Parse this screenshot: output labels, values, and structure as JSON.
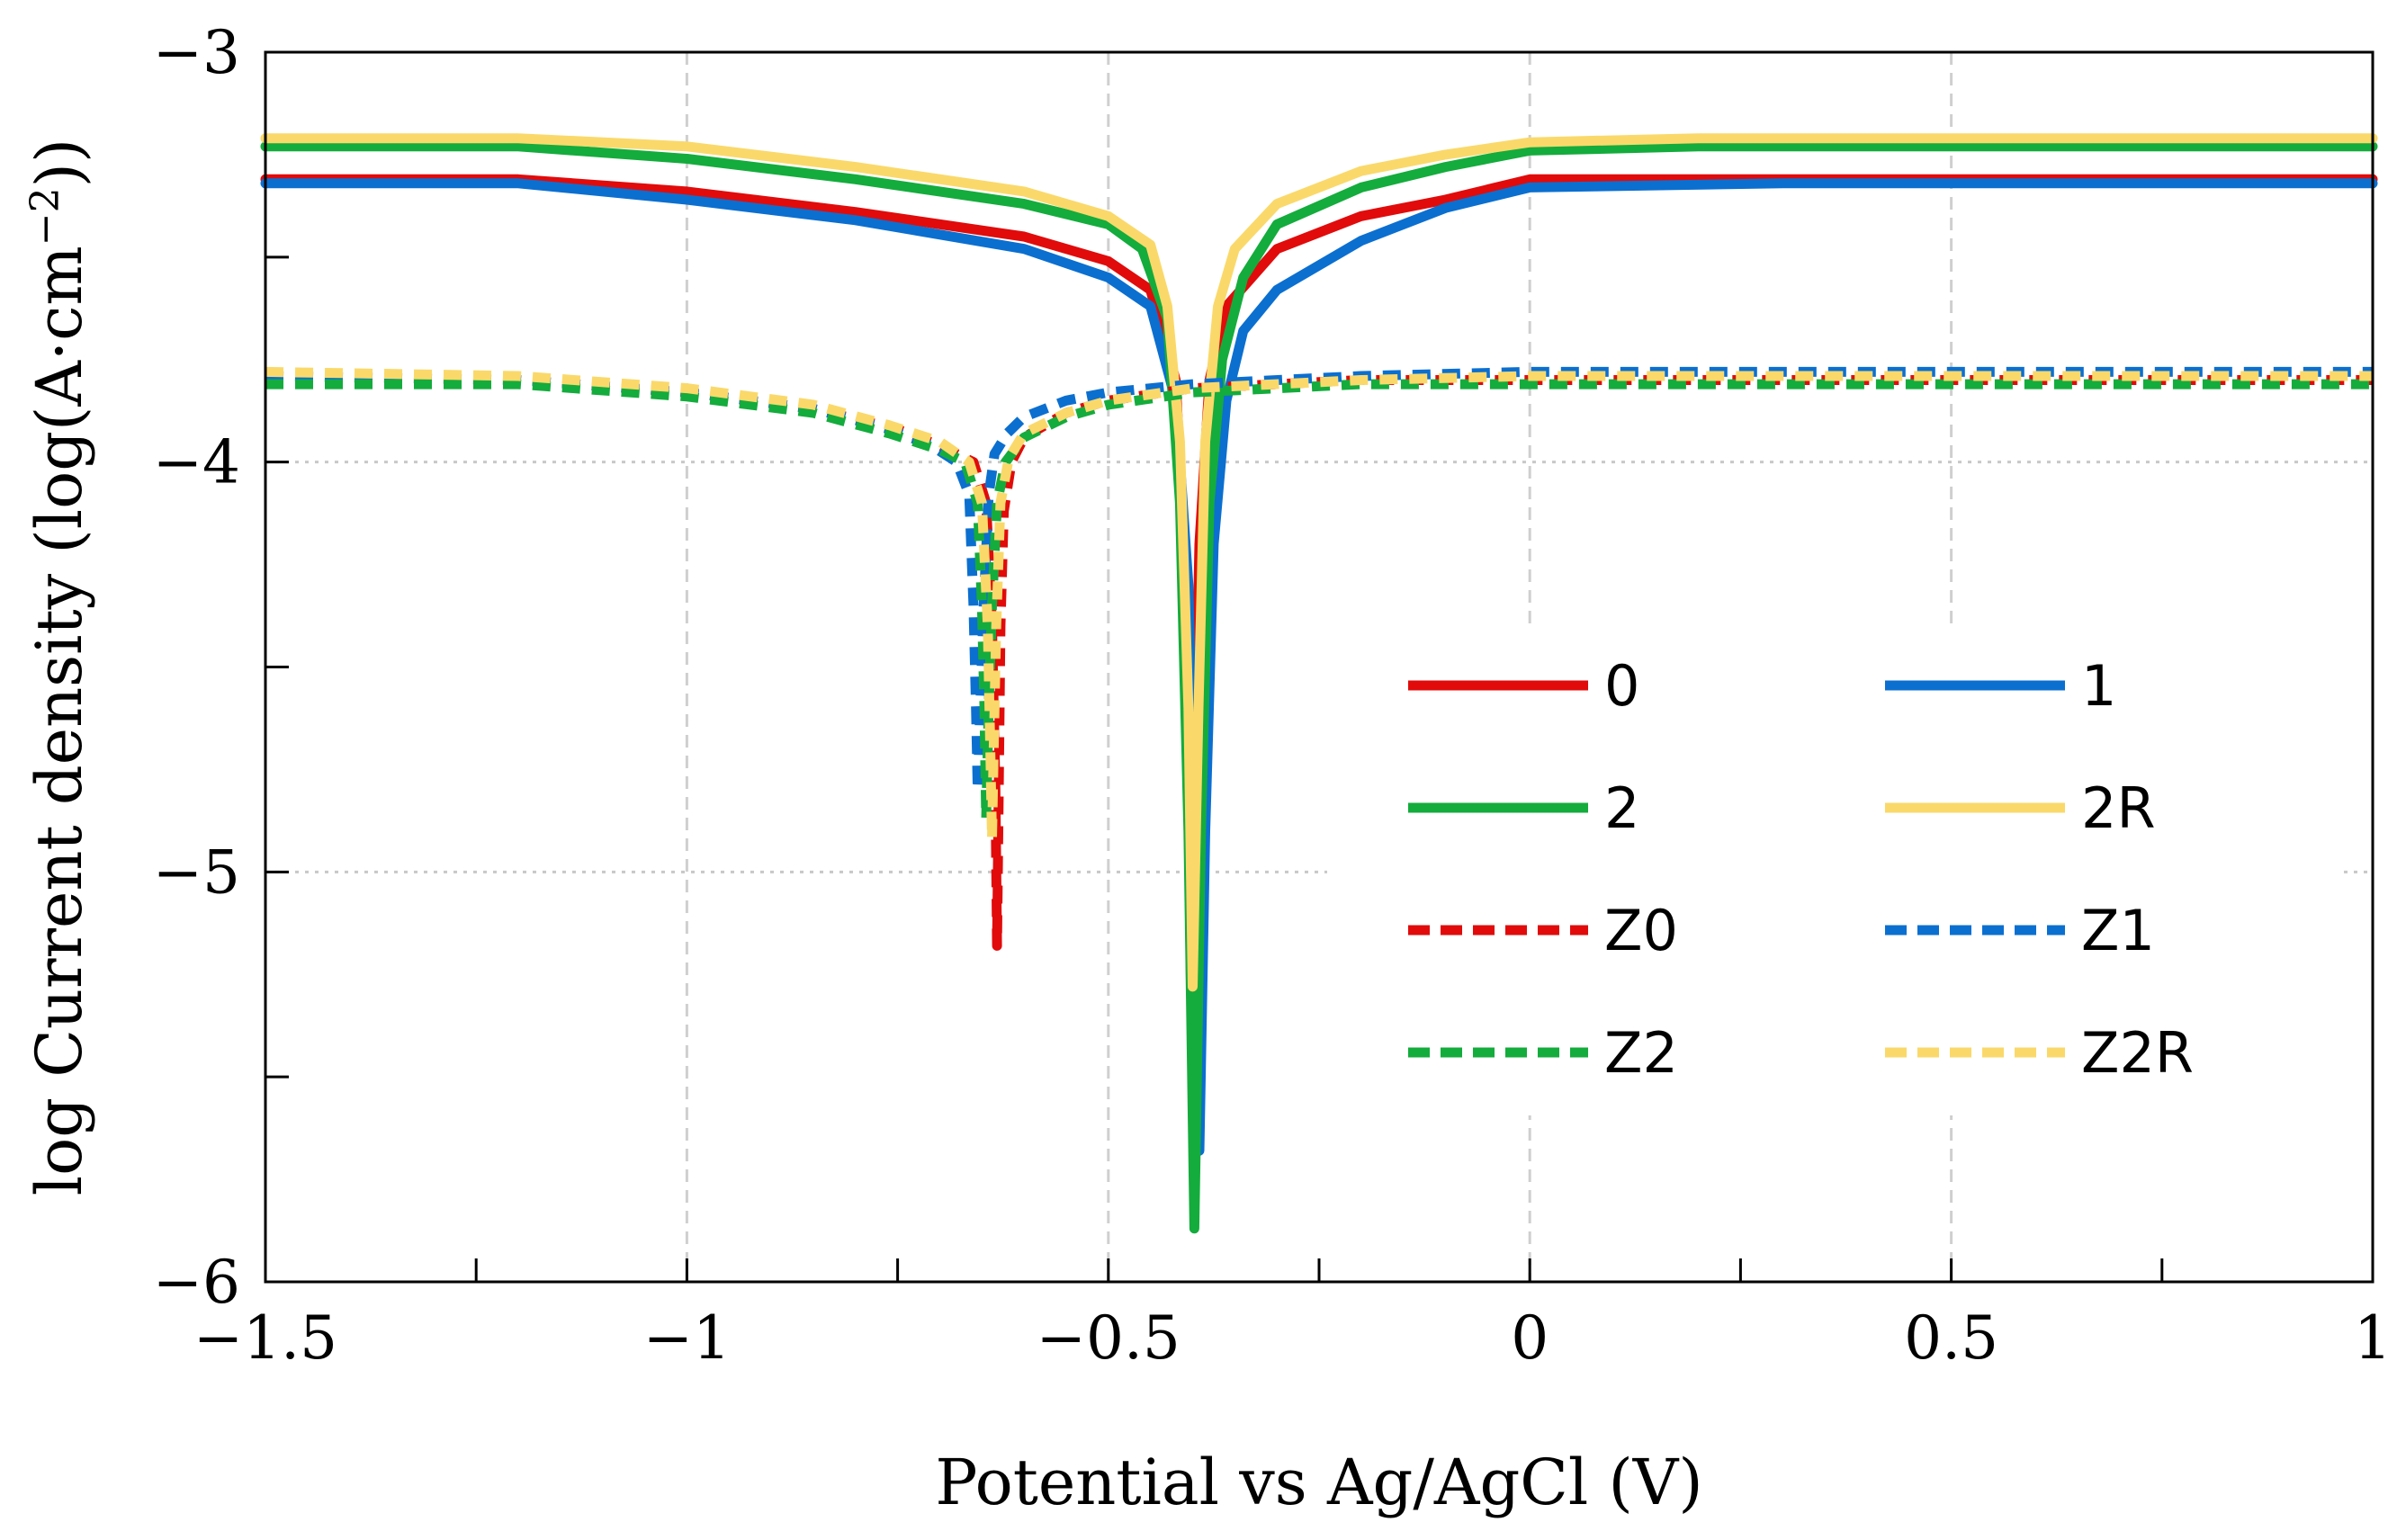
{
  "chart_data": {
    "type": "line",
    "title": "",
    "xlabel": "Potential vs Ag/AgCl (V)",
    "ylabel_pre": "log Current density (log(A·cm",
    "ylabel_sup": "−2",
    "ylabel_post": "))",
    "xlim": [
      -1.5,
      1
    ],
    "ylim": [
      -6,
      -3
    ],
    "x_ticks": [
      {
        "value": -1.5,
        "label": "−1.5"
      },
      {
        "value": -1,
        "label": "−1"
      },
      {
        "value": -0.5,
        "label": "−0.5"
      },
      {
        "value": 0,
        "label": "0"
      },
      {
        "value": 0.5,
        "label": "0.5"
      },
      {
        "value": 1,
        "label": "1"
      }
    ],
    "y_ticks": [
      {
        "value": -3,
        "label": "−3"
      },
      {
        "value": -4,
        "label": "−4"
      },
      {
        "value": -5,
        "label": "−5"
      },
      {
        "value": -6,
        "label": "−6"
      }
    ],
    "x_grid": [
      -1,
      -0.5,
      0,
      0.5
    ],
    "y_grid": [
      -4,
      -5
    ],
    "grid": true,
    "legend_position": "lower-right",
    "series": [
      {
        "name": "0",
        "color": "#e10b0b",
        "dash": "solid",
        "points": [
          [
            -1.5,
            -3.31
          ],
          [
            -1.2,
            -3.31
          ],
          [
            -1.0,
            -3.34
          ],
          [
            -0.8,
            -3.39
          ],
          [
            -0.6,
            -3.45
          ],
          [
            -0.5,
            -3.51
          ],
          [
            -0.45,
            -3.58
          ],
          [
            -0.42,
            -3.8
          ],
          [
            -0.41,
            -4.2
          ],
          [
            -0.405,
            -4.8
          ],
          [
            -0.402,
            -5.28
          ],
          [
            -0.398,
            -4.8
          ],
          [
            -0.392,
            -4.2
          ],
          [
            -0.38,
            -3.8
          ],
          [
            -0.36,
            -3.62
          ],
          [
            -0.3,
            -3.48
          ],
          [
            -0.2,
            -3.4
          ],
          [
            -0.1,
            -3.36
          ],
          [
            0.0,
            -3.31
          ],
          [
            0.3,
            -3.31
          ],
          [
            1.0,
            -3.31
          ]
        ]
      },
      {
        "name": "1",
        "color": "#0b6fd0",
        "dash": "solid",
        "points": [
          [
            -1.5,
            -3.32
          ],
          [
            -1.2,
            -3.32
          ],
          [
            -1.0,
            -3.36
          ],
          [
            -0.8,
            -3.41
          ],
          [
            -0.6,
            -3.48
          ],
          [
            -0.5,
            -3.55
          ],
          [
            -0.45,
            -3.62
          ],
          [
            -0.42,
            -3.85
          ],
          [
            -0.405,
            -4.3
          ],
          [
            -0.398,
            -4.9
          ],
          [
            -0.392,
            -5.68
          ],
          [
            -0.385,
            -4.9
          ],
          [
            -0.375,
            -4.2
          ],
          [
            -0.36,
            -3.85
          ],
          [
            -0.34,
            -3.68
          ],
          [
            -0.3,
            -3.58
          ],
          [
            -0.2,
            -3.46
          ],
          [
            -0.1,
            -3.38
          ],
          [
            0.0,
            -3.33
          ],
          [
            0.3,
            -3.32
          ],
          [
            1.0,
            -3.32
          ]
        ]
      },
      {
        "name": "2",
        "color": "#14ac3c",
        "dash": "solid",
        "points": [
          [
            -1.5,
            -3.23
          ],
          [
            -1.2,
            -3.23
          ],
          [
            -1.0,
            -3.26
          ],
          [
            -0.8,
            -3.31
          ],
          [
            -0.6,
            -3.37
          ],
          [
            -0.5,
            -3.42
          ],
          [
            -0.46,
            -3.48
          ],
          [
            -0.43,
            -3.65
          ],
          [
            -0.415,
            -4.1
          ],
          [
            -0.405,
            -4.9
          ],
          [
            -0.398,
            -5.87
          ],
          [
            -0.39,
            -4.9
          ],
          [
            -0.38,
            -4.1
          ],
          [
            -0.365,
            -3.75
          ],
          [
            -0.34,
            -3.55
          ],
          [
            -0.3,
            -3.42
          ],
          [
            -0.2,
            -3.33
          ],
          [
            -0.1,
            -3.28
          ],
          [
            0.0,
            -3.24
          ],
          [
            0.2,
            -3.23
          ],
          [
            1.0,
            -3.23
          ]
        ]
      },
      {
        "name": "2R",
        "color": "#fad96a",
        "dash": "solid",
        "points": [
          [
            -1.5,
            -3.21
          ],
          [
            -1.2,
            -3.21
          ],
          [
            -1.0,
            -3.23
          ],
          [
            -0.8,
            -3.28
          ],
          [
            -0.6,
            -3.34
          ],
          [
            -0.5,
            -3.4
          ],
          [
            -0.45,
            -3.47
          ],
          [
            -0.43,
            -3.62
          ],
          [
            -0.415,
            -3.95
          ],
          [
            -0.405,
            -4.6
          ],
          [
            -0.4,
            -5.28
          ],
          [
            -0.393,
            -4.6
          ],
          [
            -0.385,
            -3.95
          ],
          [
            -0.37,
            -3.62
          ],
          [
            -0.35,
            -3.48
          ],
          [
            -0.3,
            -3.37
          ],
          [
            -0.2,
            -3.29
          ],
          [
            -0.1,
            -3.25
          ],
          [
            0.0,
            -3.22
          ],
          [
            0.2,
            -3.21
          ],
          [
            1.0,
            -3.21
          ]
        ]
      },
      {
        "name": "Z0",
        "color": "#e10b0b",
        "dash": "dashed",
        "points": [
          [
            -1.5,
            -3.79
          ],
          [
            -1.2,
            -3.8
          ],
          [
            -1.0,
            -3.83
          ],
          [
            -0.85,
            -3.87
          ],
          [
            -0.75,
            -3.92
          ],
          [
            -0.7,
            -3.96
          ],
          [
            -0.66,
            -4.0
          ],
          [
            -0.645,
            -4.1
          ],
          [
            -0.638,
            -4.4
          ],
          [
            -0.634,
            -4.8
          ],
          [
            -0.632,
            -5.18
          ],
          [
            -0.63,
            -4.8
          ],
          [
            -0.628,
            -4.4
          ],
          [
            -0.624,
            -4.12
          ],
          [
            -0.615,
            -4.0
          ],
          [
            -0.6,
            -3.94
          ],
          [
            -0.55,
            -3.88
          ],
          [
            -0.5,
            -3.85
          ],
          [
            -0.4,
            -3.82
          ],
          [
            -0.2,
            -3.8
          ],
          [
            0.0,
            -3.8
          ],
          [
            1.0,
            -3.8
          ]
        ]
      },
      {
        "name": "Z1",
        "color": "#0b6fd0",
        "dash": "dashed",
        "points": [
          [
            -1.5,
            -3.79
          ],
          [
            -1.2,
            -3.8
          ],
          [
            -1.0,
            -3.83
          ],
          [
            -0.85,
            -3.87
          ],
          [
            -0.76,
            -3.92
          ],
          [
            -0.71,
            -3.96
          ],
          [
            -0.68,
            -4.0
          ],
          [
            -0.665,
            -4.08
          ],
          [
            -0.66,
            -4.35
          ],
          [
            -0.657,
            -4.6
          ],
          [
            -0.655,
            -4.8
          ],
          [
            -0.652,
            -4.6
          ],
          [
            -0.648,
            -4.35
          ],
          [
            -0.642,
            -4.08
          ],
          [
            -0.635,
            -3.98
          ],
          [
            -0.62,
            -3.93
          ],
          [
            -0.6,
            -3.89
          ],
          [
            -0.55,
            -3.85
          ],
          [
            -0.5,
            -3.83
          ],
          [
            -0.4,
            -3.81
          ],
          [
            -0.2,
            -3.79
          ],
          [
            0.0,
            -3.78
          ],
          [
            1.0,
            -3.78
          ]
        ]
      },
      {
        "name": "Z2",
        "color": "#14ac3c",
        "dash": "dashed",
        "points": [
          [
            -1.5,
            -3.81
          ],
          [
            -1.2,
            -3.81
          ],
          [
            -1.0,
            -3.84
          ],
          [
            -0.85,
            -3.88
          ],
          [
            -0.76,
            -3.93
          ],
          [
            -0.7,
            -3.97
          ],
          [
            -0.67,
            -4.0
          ],
          [
            -0.655,
            -4.1
          ],
          [
            -0.65,
            -4.35
          ],
          [
            -0.647,
            -4.6
          ],
          [
            -0.645,
            -4.87
          ],
          [
            -0.642,
            -4.6
          ],
          [
            -0.638,
            -4.35
          ],
          [
            -0.632,
            -4.1
          ],
          [
            -0.622,
            -4.0
          ],
          [
            -0.6,
            -3.94
          ],
          [
            -0.55,
            -3.89
          ],
          [
            -0.5,
            -3.86
          ],
          [
            -0.4,
            -3.83
          ],
          [
            -0.2,
            -3.81
          ],
          [
            0.0,
            -3.81
          ],
          [
            1.0,
            -3.81
          ]
        ]
      },
      {
        "name": "Z2R",
        "color": "#fad96a",
        "dash": "dashed",
        "points": [
          [
            -1.5,
            -3.78
          ],
          [
            -1.2,
            -3.79
          ],
          [
            -1.0,
            -3.82
          ],
          [
            -0.85,
            -3.86
          ],
          [
            -0.76,
            -3.91
          ],
          [
            -0.7,
            -3.95
          ],
          [
            -0.665,
            -4.0
          ],
          [
            -0.65,
            -4.1
          ],
          [
            -0.643,
            -4.4
          ],
          [
            -0.64,
            -4.7
          ],
          [
            -0.638,
            -4.92
          ],
          [
            -0.636,
            -4.7
          ],
          [
            -0.633,
            -4.4
          ],
          [
            -0.628,
            -4.1
          ],
          [
            -0.618,
            -3.99
          ],
          [
            -0.6,
            -3.93
          ],
          [
            -0.55,
            -3.88
          ],
          [
            -0.5,
            -3.85
          ],
          [
            -0.4,
            -3.82
          ],
          [
            -0.2,
            -3.8
          ],
          [
            0.0,
            -3.79
          ],
          [
            1.0,
            -3.79
          ]
        ]
      }
    ]
  }
}
